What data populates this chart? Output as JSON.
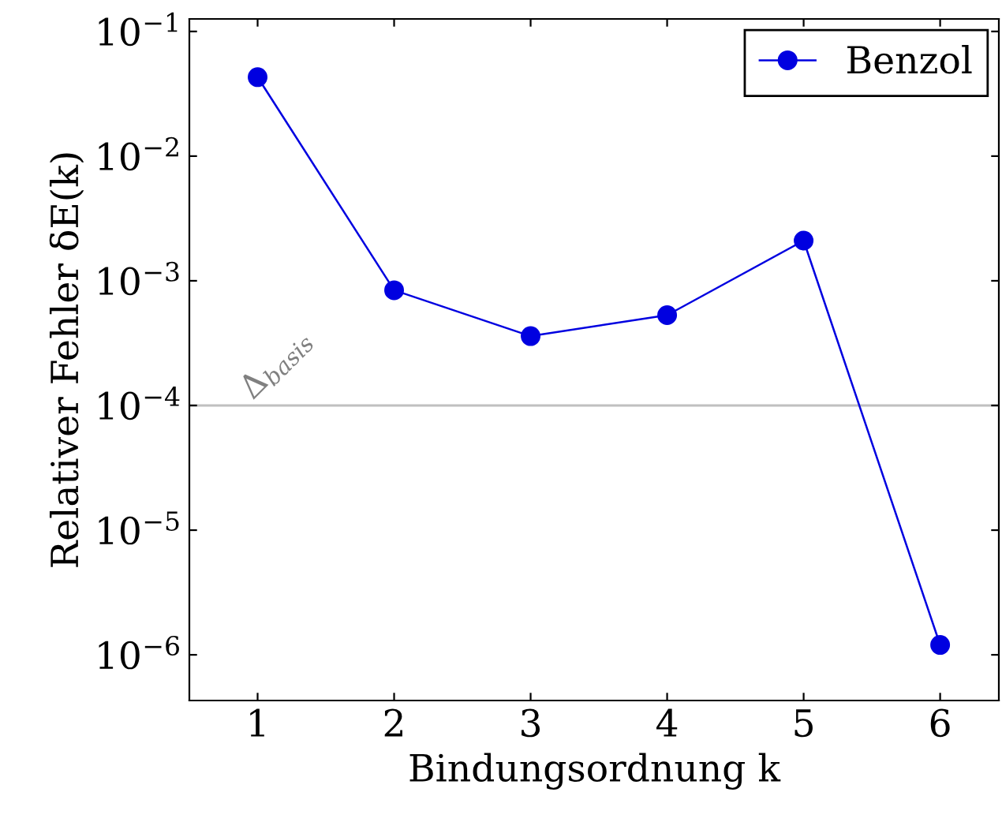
{
  "chart_data": {
    "type": "line",
    "xlabel": "Bindungsordnung k",
    "ylabel": "Relativer Fehler δE(k)",
    "x": [
      1,
      2,
      3,
      4,
      5,
      6
    ],
    "series": [
      {
        "name": "Benzol",
        "color": "#0000e0",
        "values": [
          0.043,
          0.00084,
          0.00036,
          0.00053,
          0.0021,
          1.2e-06
        ]
      }
    ],
    "log": "y",
    "xlim": [
      0.5,
      6.43
    ],
    "xticks": [
      1,
      2,
      3,
      4,
      5,
      6
    ],
    "ylim": [
      4.3e-07,
      0.126
    ],
    "yticks": [
      {
        "value": 1e-06,
        "label": "10$^{−6}$"
      },
      {
        "value": 1e-05,
        "label": "10$^{−5}$"
      },
      {
        "value": 0.0001,
        "label": "10$^{−4}$"
      },
      {
        "value": 0.001,
        "label": "10$^{−3}$"
      },
      {
        "value": 0.01,
        "label": "10$^{−2}$"
      },
      {
        "value": 0.1,
        "label": "10$^{−1}$"
      }
    ],
    "ref_lines": [
      {
        "axis": "y",
        "value": 0.0001,
        "label": "Δ$_{basis}$",
        "color": "#c0c0c0"
      }
    ],
    "grid": false,
    "legend": "top right",
    "marker": "circle",
    "line_style": "solid"
  }
}
